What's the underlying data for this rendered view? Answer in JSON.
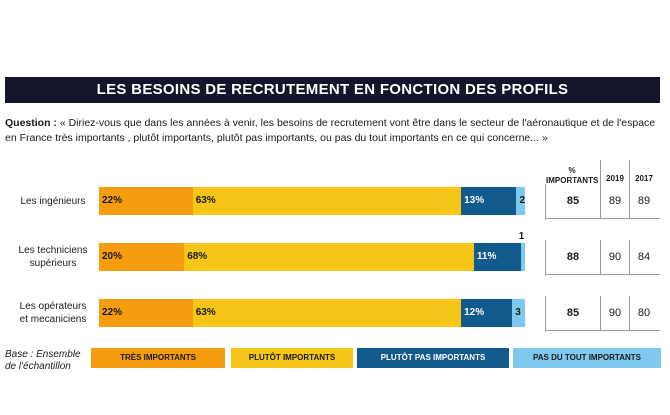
{
  "title": "LES BESOINS DE RECRUTEMENT EN FONCTION DES PROFILS",
  "question_label": "Question :",
  "question_text": "« Diriez-vous que dans les années à venir, les besoins de recrutement vont être dans le secteur de l'aéronautique et de l'espace en France très importants , plutôt importants, plutôt pas importants, ou pas du tout importants en ce qui concerne... »",
  "base_line1": "Base : Ensemble",
  "base_line2": "de l'échantillon",
  "colors": {
    "tres_importants": "#f59d0e",
    "plutot_importants": "#f5c518",
    "plutot_pas_importants": "#135a8c",
    "pas_du_tout_importants": "#7fc8ef"
  },
  "table_headers": {
    "pct": "% IMPORTANTS",
    "y2019": "2019",
    "y2017": "2017"
  },
  "chart_data": {
    "type": "bar",
    "orientation": "horizontal",
    "stacked": true,
    "categories": [
      "Les ingénieurs",
      "Les techniciens supérieurs",
      "Les opérateurs et mecaniciens"
    ],
    "category_lines": [
      [
        "Les ingénieurs"
      ],
      [
        "Les techniciens",
        "supérieurs"
      ],
      [
        "Les opérateurs",
        "et mecaniciens"
      ]
    ],
    "series": [
      {
        "name": "TRÈS IMPORTANTS",
        "values": [
          22,
          20,
          22
        ],
        "labels": [
          "22%",
          "20%",
          "22%"
        ]
      },
      {
        "name": "PLUTÔT IMPORTANTS",
        "values": [
          63,
          68,
          63
        ],
        "labels": [
          "63%",
          "68%",
          "63%"
        ]
      },
      {
        "name": "PLUTÔT PAS IMPORTANTS",
        "values": [
          13,
          11,
          12
        ],
        "labels": [
          "13%",
          "11%",
          "12%"
        ]
      },
      {
        "name": "PAS DU TOUT IMPORTANTS",
        "values": [
          2,
          1,
          3
        ],
        "labels": [
          "2",
          "1",
          "3"
        ]
      }
    ],
    "xlim": [
      0,
      100
    ],
    "legend": "bottom",
    "table": {
      "pct_importants": [
        "85",
        "88",
        "85"
      ],
      "y2019": [
        "89",
        "90",
        "90"
      ],
      "y2017": [
        "89",
        "84",
        "80"
      ]
    }
  }
}
